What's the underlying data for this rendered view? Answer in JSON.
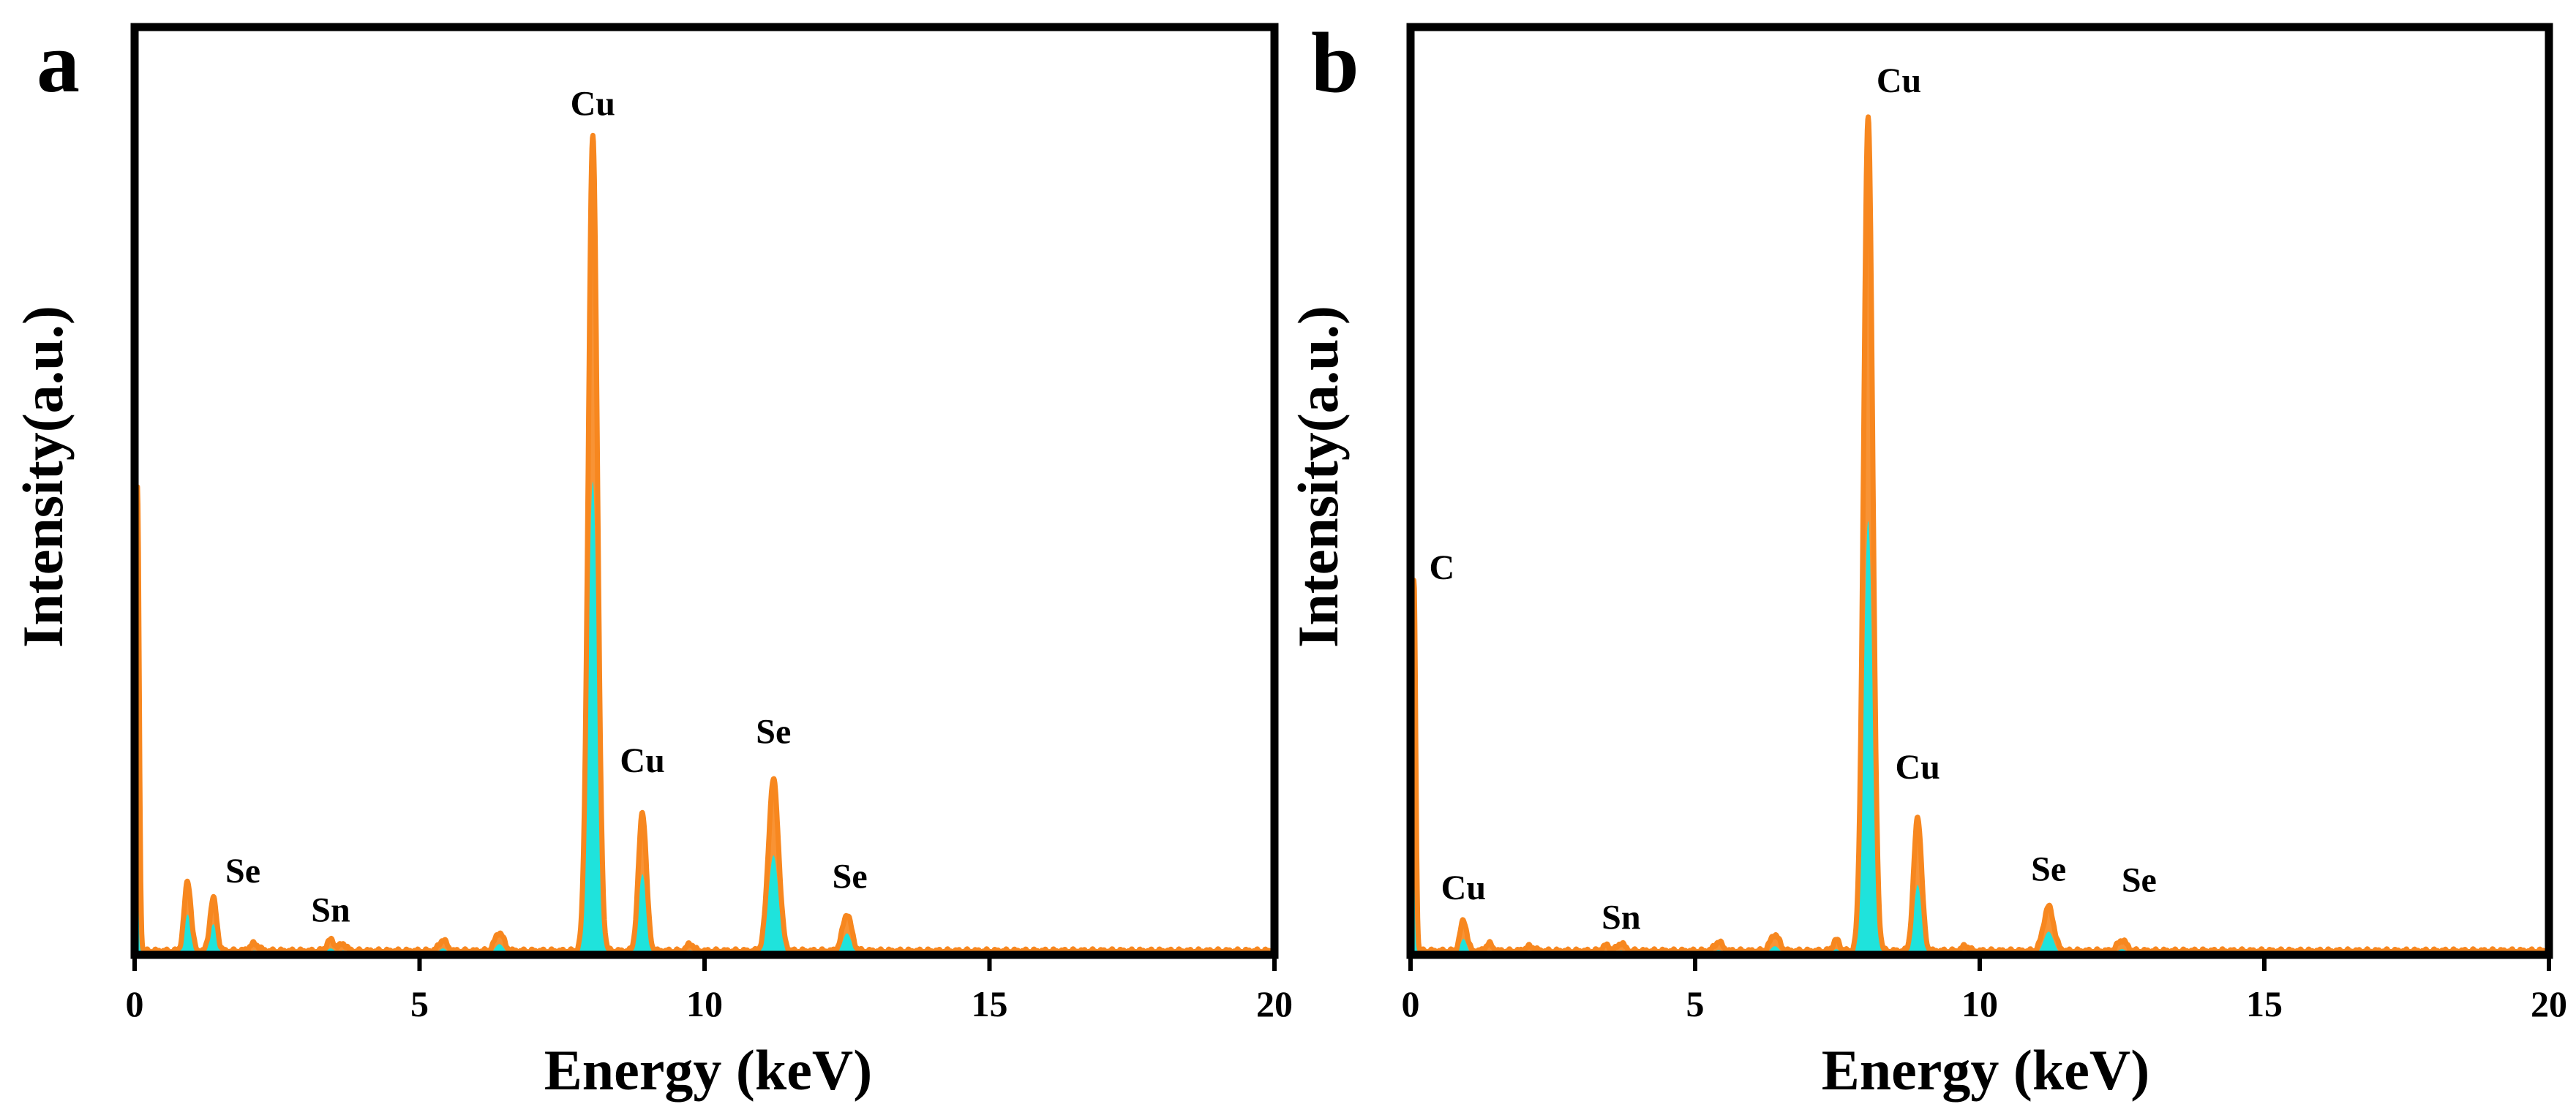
{
  "figure": {
    "colors": {
      "envelope": "#F7871F",
      "fill": "#1FE3DC",
      "axis": "#000000"
    }
  },
  "chart_data": [
    {
      "type": "area",
      "panel_label": "a",
      "xlabel": "Energy (keV)",
      "ylabel": "Intensity(a.u.)",
      "xlim": [
        0,
        20
      ],
      "ylim": [
        0,
        1.0
      ],
      "xticks": [
        0,
        5,
        10,
        15,
        20
      ],
      "xtick_labels": [
        "0",
        "5",
        "10",
        "15",
        "20"
      ],
      "yticks_shown": false,
      "grid": false,
      "baseline": 0.004,
      "series": [
        {
          "name": "spectrum",
          "peaks": [
            {
              "x": 0.05,
              "y": 0.5,
              "w": 0.03
            },
            {
              "x": 0.93,
              "y": 0.075,
              "w": 0.06
            },
            {
              "x": 1.38,
              "y": 0.057,
              "w": 0.06
            },
            {
              "x": 2.1,
              "y": 0.008,
              "w": 0.08
            },
            {
              "x": 3.44,
              "y": 0.012,
              "w": 0.07
            },
            {
              "x": 3.66,
              "y": 0.008,
              "w": 0.06
            },
            {
              "x": 5.41,
              "y": 0.012,
              "w": 0.07
            },
            {
              "x": 6.4,
              "y": 0.02,
              "w": 0.08
            },
            {
              "x": 8.04,
              "y": 0.88,
              "w": 0.08
            },
            {
              "x": 8.91,
              "y": 0.15,
              "w": 0.07
            },
            {
              "x": 9.75,
              "y": 0.008,
              "w": 0.06
            },
            {
              "x": 11.21,
              "y": 0.185,
              "w": 0.09
            },
            {
              "x": 12.5,
              "y": 0.04,
              "w": 0.08
            }
          ]
        }
      ],
      "fill_scale": 0.58,
      "annotations": [
        {
          "text": "Cu",
          "x": 8.04,
          "y": 0.905
        },
        {
          "text": "Cu",
          "x": 8.91,
          "y": 0.197
        },
        {
          "text": "Se",
          "x": 1.9,
          "y": 0.078
        },
        {
          "text": "Sn",
          "x": 3.44,
          "y": 0.036
        },
        {
          "text": "Se",
          "x": 11.21,
          "y": 0.228
        },
        {
          "text": "Se",
          "x": 12.55,
          "y": 0.072
        }
      ]
    },
    {
      "type": "area",
      "panel_label": "b",
      "xlabel": "Energy (keV)",
      "ylabel": "Intensity(a.u.)",
      "xlim": [
        0,
        20
      ],
      "ylim": [
        0,
        1.0
      ],
      "xticks": [
        0,
        5,
        10,
        15,
        20
      ],
      "xtick_labels": [
        "0",
        "5",
        "10",
        "15",
        "20"
      ],
      "yticks_shown": false,
      "grid": false,
      "baseline": 0.004,
      "series": [
        {
          "name": "spectrum",
          "peaks": [
            {
              "x": 0.06,
              "y": 0.4,
              "w": 0.03
            },
            {
              "x": 0.93,
              "y": 0.033,
              "w": 0.06
            },
            {
              "x": 1.38,
              "y": 0.008,
              "w": 0.06
            },
            {
              "x": 2.1,
              "y": 0.005,
              "w": 0.08
            },
            {
              "x": 3.44,
              "y": 0.006,
              "w": 0.07
            },
            {
              "x": 3.7,
              "y": 0.009,
              "w": 0.06
            },
            {
              "x": 5.41,
              "y": 0.01,
              "w": 0.07
            },
            {
              "x": 6.4,
              "y": 0.018,
              "w": 0.08
            },
            {
              "x": 7.48,
              "y": 0.012,
              "w": 0.06
            },
            {
              "x": 8.04,
              "y": 0.9,
              "w": 0.08
            },
            {
              "x": 8.91,
              "y": 0.145,
              "w": 0.07
            },
            {
              "x": 9.75,
              "y": 0.006,
              "w": 0.06
            },
            {
              "x": 11.21,
              "y": 0.048,
              "w": 0.09
            },
            {
              "x": 12.5,
              "y": 0.012,
              "w": 0.08
            }
          ]
        }
      ],
      "fill_scale": 0.52,
      "annotations": [
        {
          "text": "Cu",
          "x": 8.58,
          "y": 0.93
        },
        {
          "text": "C",
          "x": 0.55,
          "y": 0.405
        },
        {
          "text": "Cu",
          "x": 8.91,
          "y": 0.19
        },
        {
          "text": "Cu",
          "x": 0.93,
          "y": 0.06
        },
        {
          "text": "Sn",
          "x": 3.7,
          "y": 0.028
        },
        {
          "text": "Se",
          "x": 11.21,
          "y": 0.08
        },
        {
          "text": "Se",
          "x": 12.8,
          "y": 0.068
        }
      ]
    }
  ]
}
